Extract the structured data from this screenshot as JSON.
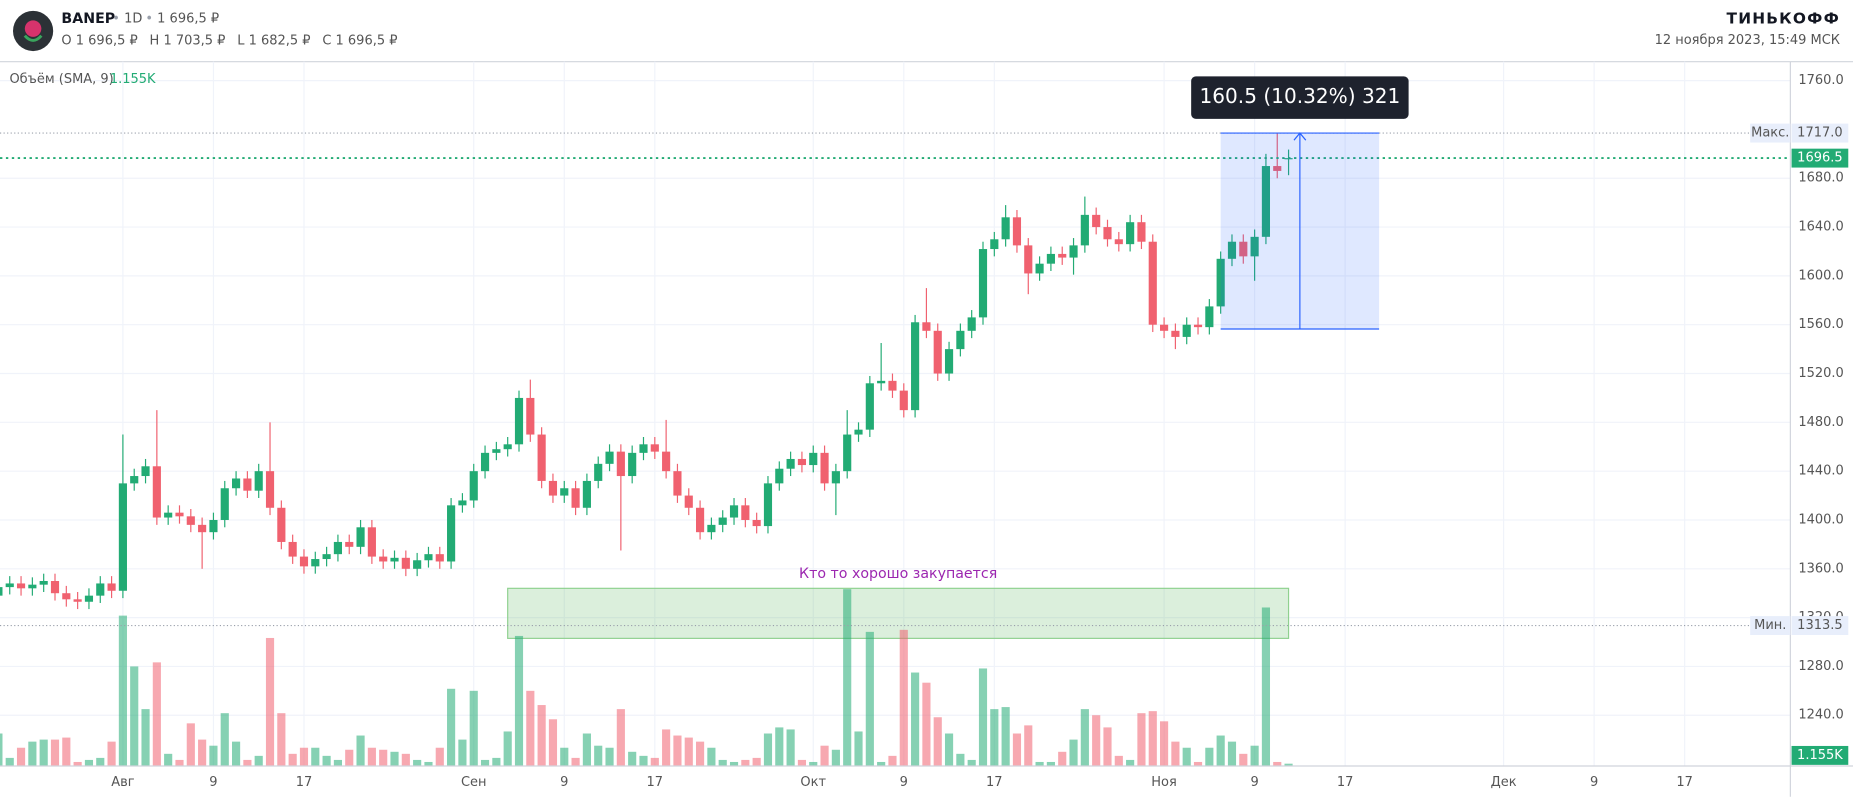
{
  "header": {
    "ticker": "BANEP",
    "interval": "1D",
    "price": "1 696,5 ₽",
    "ohlc": [
      "O 1 696,5 ₽",
      "H 1 703,5 ₽",
      "L 1 682,5 ₽",
      "C 1 696,5 ₽"
    ],
    "brand": "ТИНЬКОФФ",
    "datetime": "12 ноября 2023, 15:49 МСК"
  },
  "chart_data": {
    "type": "candlestick",
    "open": [
      1338,
      1345,
      1348,
      1344,
      1347,
      1350,
      1340,
      1335,
      1333,
      1338,
      1348,
      1342,
      1430,
      1436,
      1444,
      1402,
      1406,
      1403,
      1396,
      1390,
      1400,
      1426,
      1434,
      1424,
      1440,
      1410,
      1382,
      1370,
      1362,
      1368,
      1372,
      1382,
      1378,
      1394,
      1370,
      1366,
      1369,
      1360,
      1367,
      1372,
      1366,
      1412,
      1416,
      1440,
      1455,
      1458,
      1462,
      1500,
      1470,
      1432,
      1420,
      1426,
      1410,
      1432,
      1446,
      1456,
      1436,
      1455,
      1462,
      1456,
      1440,
      1420,
      1410,
      1390,
      1396,
      1402,
      1412,
      1400,
      1395,
      1430,
      1442,
      1450,
      1445,
      1455,
      1430,
      1440,
      1470,
      1474,
      1512,
      1514,
      1506,
      1490,
      1562,
      1555,
      1520,
      1540,
      1555,
      1566,
      1622,
      1630,
      1648,
      1625,
      1602,
      1610,
      1618,
      1615,
      1625,
      1650,
      1640,
      1630,
      1626,
      1644,
      1628,
      1560,
      1555,
      1550,
      1560,
      1558,
      1575,
      1614,
      1628,
      1616,
      1632,
      1690,
      1696.5
    ],
    "high": [
      1351,
      1354,
      1354,
      1353,
      1356,
      1356,
      1346,
      1341,
      1344,
      1354,
      1354,
      1470,
      1442,
      1450,
      1490,
      1412,
      1412,
      1409,
      1402,
      1406,
      1432,
      1440,
      1440,
      1446,
      1480,
      1416,
      1388,
      1376,
      1374,
      1378,
      1388,
      1388,
      1400,
      1400,
      1376,
      1375,
      1375,
      1373,
      1378,
      1378,
      1418,
      1422,
      1446,
      1461,
      1464,
      1468,
      1506,
      1515,
      1476,
      1438,
      1432,
      1432,
      1438,
      1452,
      1462,
      1462,
      1461,
      1468,
      1468,
      1482,
      1446,
      1426,
      1416,
      1402,
      1408,
      1418,
      1418,
      1406,
      1436,
      1448,
      1456,
      1456,
      1461,
      1461,
      1446,
      1490,
      1480,
      1518,
      1545,
      1520,
      1512,
      1568,
      1590,
      1561,
      1546,
      1561,
      1572,
      1628,
      1636,
      1658,
      1654,
      1631,
      1616,
      1624,
      1624,
      1631,
      1665,
      1656,
      1646,
      1636,
      1650,
      1650,
      1634,
      1566,
      1561,
      1566,
      1566,
      1581,
      1620,
      1634,
      1634,
      1638,
      1700,
      1717,
      1703.5
    ],
    "low": [
      1332,
      1339,
      1338,
      1338,
      1341,
      1334,
      1329,
      1327,
      1327,
      1332,
      1336,
      1336,
      1424,
      1430,
      1396,
      1396,
      1397,
      1390,
      1360,
      1384,
      1394,
      1420,
      1418,
      1418,
      1404,
      1376,
      1364,
      1356,
      1356,
      1362,
      1366,
      1372,
      1372,
      1364,
      1360,
      1360,
      1354,
      1354,
      1361,
      1360,
      1360,
      1406,
      1410,
      1434,
      1449,
      1452,
      1456,
      1464,
      1426,
      1414,
      1414,
      1404,
      1404,
      1426,
      1440,
      1375,
      1430,
      1449,
      1450,
      1434,
      1414,
      1404,
      1384,
      1384,
      1390,
      1396,
      1394,
      1389,
      1389,
      1424,
      1436,
      1439,
      1439,
      1424,
      1404,
      1434,
      1464,
      1468,
      1506,
      1500,
      1484,
      1484,
      1549,
      1514,
      1514,
      1534,
      1549,
      1560,
      1616,
      1624,
      1619,
      1585,
      1596,
      1604,
      1609,
      1601,
      1619,
      1634,
      1624,
      1620,
      1620,
      1622,
      1554,
      1549,
      1540,
      1544,
      1552,
      1552,
      1569,
      1608,
      1610,
      1596,
      1626,
      1680,
      1682.5
    ],
    "close": [
      1345,
      1348,
      1344,
      1347,
      1350,
      1340,
      1335,
      1333,
      1338,
      1348,
      1342,
      1430,
      1436,
      1444,
      1402,
      1406,
      1403,
      1396,
      1390,
      1400,
      1426,
      1434,
      1424,
      1440,
      1410,
      1382,
      1370,
      1362,
      1368,
      1372,
      1382,
      1378,
      1394,
      1370,
      1366,
      1369,
      1360,
      1367,
      1372,
      1366,
      1412,
      1416,
      1440,
      1455,
      1458,
      1462,
      1500,
      1470,
      1432,
      1420,
      1426,
      1410,
      1432,
      1446,
      1456,
      1436,
      1455,
      1462,
      1456,
      1440,
      1420,
      1410,
      1390,
      1396,
      1402,
      1412,
      1400,
      1395,
      1430,
      1442,
      1450,
      1445,
      1455,
      1430,
      1440,
      1470,
      1474,
      1512,
      1514,
      1506,
      1490,
      1562,
      1555,
      1520,
      1540,
      1555,
      1566,
      1622,
      1630,
      1648,
      1625,
      1602,
      1610,
      1618,
      1615,
      1625,
      1650,
      1640,
      1630,
      1626,
      1644,
      1628,
      1560,
      1555,
      1550,
      1560,
      1558,
      1575,
      1614,
      1628,
      1616,
      1632,
      1690,
      1686,
      1696.5
    ],
    "volume": [
      16,
      4,
      9,
      12,
      13,
      13,
      14,
      2,
      3,
      4,
      12,
      74,
      49,
      28,
      51,
      6,
      3,
      21,
      13,
      10,
      26,
      12,
      3,
      5,
      63,
      26,
      6,
      9,
      9,
      5,
      3,
      8,
      15,
      9,
      8,
      7,
      6,
      3,
      2,
      9,
      38,
      13,
      37,
      3,
      4,
      17,
      64,
      37,
      30,
      23,
      9,
      4,
      16,
      10,
      9,
      28,
      7,
      5,
      4,
      18,
      15,
      14,
      12,
      9,
      3,
      2,
      3,
      4,
      16,
      19,
      18,
      3,
      2,
      10,
      8,
      87,
      17,
      66,
      2,
      5,
      67,
      46,
      41,
      24,
      16,
      6,
      3,
      48,
      28,
      29,
      16,
      20,
      2,
      2,
      7,
      13,
      28,
      25,
      19,
      5,
      3,
      26,
      27,
      22,
      12,
      9,
      2,
      9,
      15,
      12,
      6,
      10,
      78,
      2,
      1.155
    ],
    "vlim": [
      0,
      100
    ],
    "volume_name": "Объём (SMA, 9)",
    "volume_last_label": "1.155K",
    "up_color": "#22ab74",
    "down_color": "#f0616f",
    "ylim": [
      1198.4,
      1775.5
    ],
    "yticks": [
      {
        "value": 1760,
        "label": "1760.0"
      },
      {
        "value": 1680,
        "label": "1680.0"
      },
      {
        "value": 1640,
        "label": "1640.0"
      },
      {
        "value": 1600,
        "label": "1600.0"
      },
      {
        "value": 1560,
        "label": "1560.0"
      },
      {
        "value": 1520,
        "label": "1520.0"
      },
      {
        "value": 1480,
        "label": "1480.0"
      },
      {
        "value": 1440,
        "label": "1440.0"
      },
      {
        "value": 1400,
        "label": "1400.0"
      },
      {
        "value": 1360,
        "label": "1360.0"
      },
      {
        "value": 1320,
        "label": "1320.0"
      },
      {
        "value": 1280,
        "label": "1280.0"
      },
      {
        "value": 1240,
        "label": "1240.0"
      }
    ],
    "xlim": [
      0.14,
      158.34
    ],
    "xticks": [
      {
        "value": 11,
        "label": "Авг"
      },
      {
        "value": 19,
        "label": "9"
      },
      {
        "value": 27,
        "label": "17"
      },
      {
        "value": 42,
        "label": "Сен"
      },
      {
        "value": 50,
        "label": "9"
      },
      {
        "value": 58,
        "label": "17"
      },
      {
        "value": 72,
        "label": "Окт"
      },
      {
        "value": 80,
        "label": "9"
      },
      {
        "value": 88,
        "label": "17"
      },
      {
        "value": 103,
        "label": "Ноя"
      },
      {
        "value": 111,
        "label": "9"
      },
      {
        "value": 119,
        "label": "17"
      },
      {
        "value": 133,
        "label": "Дек"
      },
      {
        "value": 141,
        "label": "9"
      },
      {
        "value": 149,
        "label": "17"
      }
    ],
    "grid": true,
    "price_lines": [
      {
        "name": "Макс.",
        "value": 1717,
        "label": "1717.0",
        "color": "#9aa0ab"
      },
      {
        "value": 1696.5,
        "label": "1696.5",
        "color": "#22ab74"
      },
      {
        "name": "Мин.",
        "value": 1313.5,
        "label": "1313.5",
        "color": "#9aa0ab"
      }
    ],
    "measure": {
      "start": 108,
      "end": 122,
      "from": 1556.5,
      "to": 1717,
      "label": "160.5 (10.32%) 321"
    },
    "zone": {
      "label": "Кто то хорошо закупается",
      "start": 45,
      "end": 114,
      "low": 1303,
      "high": 1344
    }
  }
}
